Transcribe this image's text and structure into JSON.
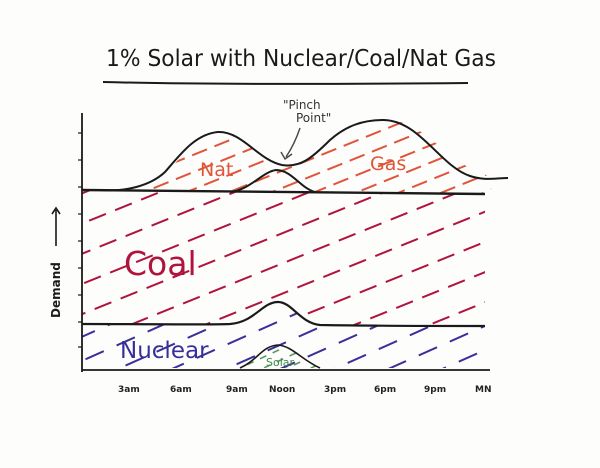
{
  "title": "1% Solar with Nuclear/Coal/Nat Gas",
  "y_axis_label": "Demand",
  "annotation": "\"Pinch Point\"",
  "annotation_lines": [
    "\"Pinch",
    "Point\""
  ],
  "regions": {
    "natural_gas": {
      "label_left": "Nat",
      "label_right": "Gas",
      "color": "#e0553a"
    },
    "coal": {
      "label": "Coal",
      "color": "#b0143c"
    },
    "nuclear": {
      "label": "Nuclear",
      "color": "#3a2f9a"
    },
    "solar": {
      "label": "Solar",
      "color": "#3d8a4a"
    }
  },
  "x_ticks": [
    "3am",
    "6am",
    "9am",
    "Noon",
    "3pm",
    "6pm",
    "9pm",
    "MN"
  ],
  "colors": {
    "ink": "#1a1a1a",
    "paper": "#fdfdfc"
  }
}
